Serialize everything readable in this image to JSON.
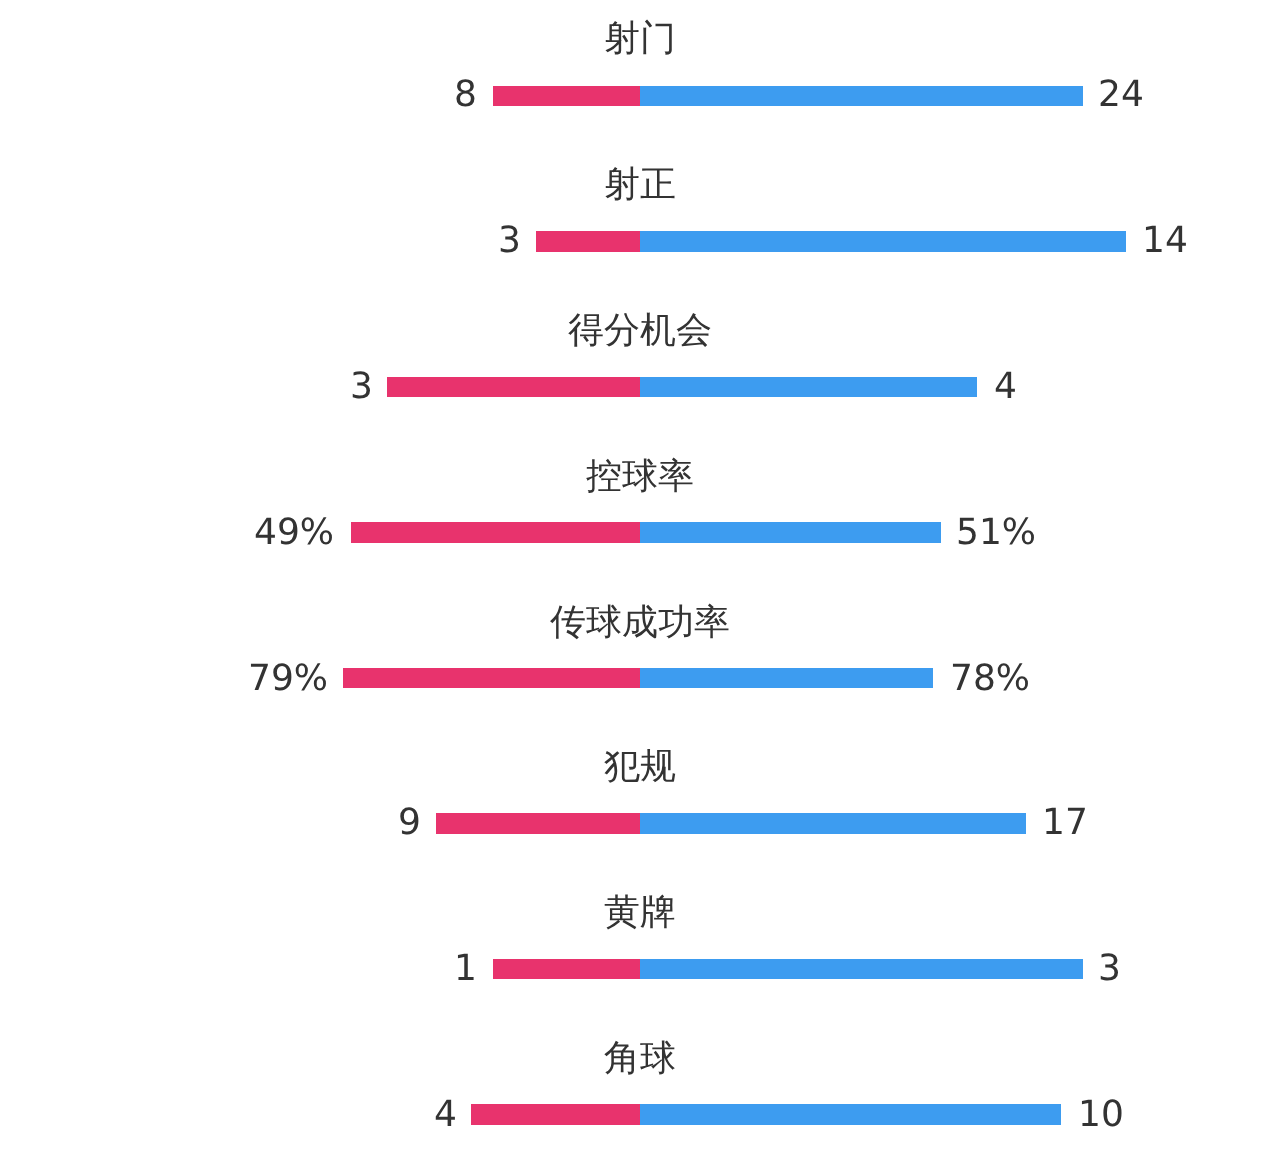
{
  "chart_data": [
    {
      "type": "bar",
      "orientation": "horizontal",
      "stacked": true,
      "title": "射门",
      "categories": [
        null
      ],
      "tick_labels": false,
      "series": [
        {
          "color": "#e8336d",
          "values": [
            8
          ],
          "value_labels": [
            "8"
          ]
        },
        {
          "color": "#3d9cf0",
          "values": [
            24
          ],
          "value_labels": [
            "24"
          ]
        }
      ]
    },
    {
      "type": "bar",
      "orientation": "horizontal",
      "stacked": true,
      "title": "射正",
      "categories": [
        null
      ],
      "tick_labels": false,
      "series": [
        {
          "color": "#e8336d",
          "values": [
            3
          ],
          "value_labels": [
            "3"
          ]
        },
        {
          "color": "#3d9cf0",
          "values": [
            14
          ],
          "value_labels": [
            "14"
          ]
        }
      ]
    },
    {
      "type": "bar",
      "orientation": "horizontal",
      "stacked": true,
      "title": "得分机会",
      "categories": [
        null
      ],
      "tick_labels": false,
      "series": [
        {
          "color": "#e8336d",
          "values": [
            3
          ],
          "value_labels": [
            "3"
          ]
        },
        {
          "color": "#3d9cf0",
          "values": [
            4
          ],
          "value_labels": [
            "4"
          ]
        }
      ]
    },
    {
      "type": "bar",
      "orientation": "horizontal",
      "stacked": true,
      "title": "控球率",
      "categories": [
        null
      ],
      "tick_labels": false,
      "series": [
        {
          "color": "#e8336d",
          "values": [
            49
          ],
          "value_labels": [
            "49%"
          ]
        },
        {
          "color": "#3d9cf0",
          "values": [
            51
          ],
          "value_labels": [
            "51%"
          ]
        }
      ]
    },
    {
      "type": "bar",
      "orientation": "horizontal",
      "stacked": true,
      "title": "传球成功率",
      "categories": [
        null
      ],
      "tick_labels": false,
      "series": [
        {
          "color": "#e8336d",
          "values": [
            79
          ],
          "value_labels": [
            "79%"
          ]
        },
        {
          "color": "#3d9cf0",
          "values": [
            78
          ],
          "value_labels": [
            "78%"
          ]
        }
      ]
    },
    {
      "type": "bar",
      "orientation": "horizontal",
      "stacked": true,
      "title": "犯规",
      "categories": [
        null
      ],
      "tick_labels": false,
      "series": [
        {
          "color": "#e8336d",
          "values": [
            9
          ],
          "value_labels": [
            "9"
          ]
        },
        {
          "color": "#3d9cf0",
          "values": [
            17
          ],
          "value_labels": [
            "17"
          ]
        }
      ]
    },
    {
      "type": "bar",
      "orientation": "horizontal",
      "stacked": true,
      "title": "黄牌",
      "categories": [
        null
      ],
      "tick_labels": false,
      "series": [
        {
          "color": "#e8336d",
          "values": [
            1
          ],
          "value_labels": [
            "1"
          ]
        },
        {
          "color": "#3d9cf0",
          "values": [
            3
          ],
          "value_labels": [
            "3"
          ]
        }
      ]
    },
    {
      "type": "bar",
      "orientation": "horizontal",
      "stacked": true,
      "title": "角球",
      "categories": [
        null
      ],
      "tick_labels": false,
      "series": [
        {
          "color": "#e8336d",
          "values": [
            4
          ],
          "value_labels": [
            "4"
          ]
        },
        {
          "color": "#3d9cf0",
          "values": [
            10
          ],
          "value_labels": [
            "10"
          ]
        }
      ]
    }
  ]
}
